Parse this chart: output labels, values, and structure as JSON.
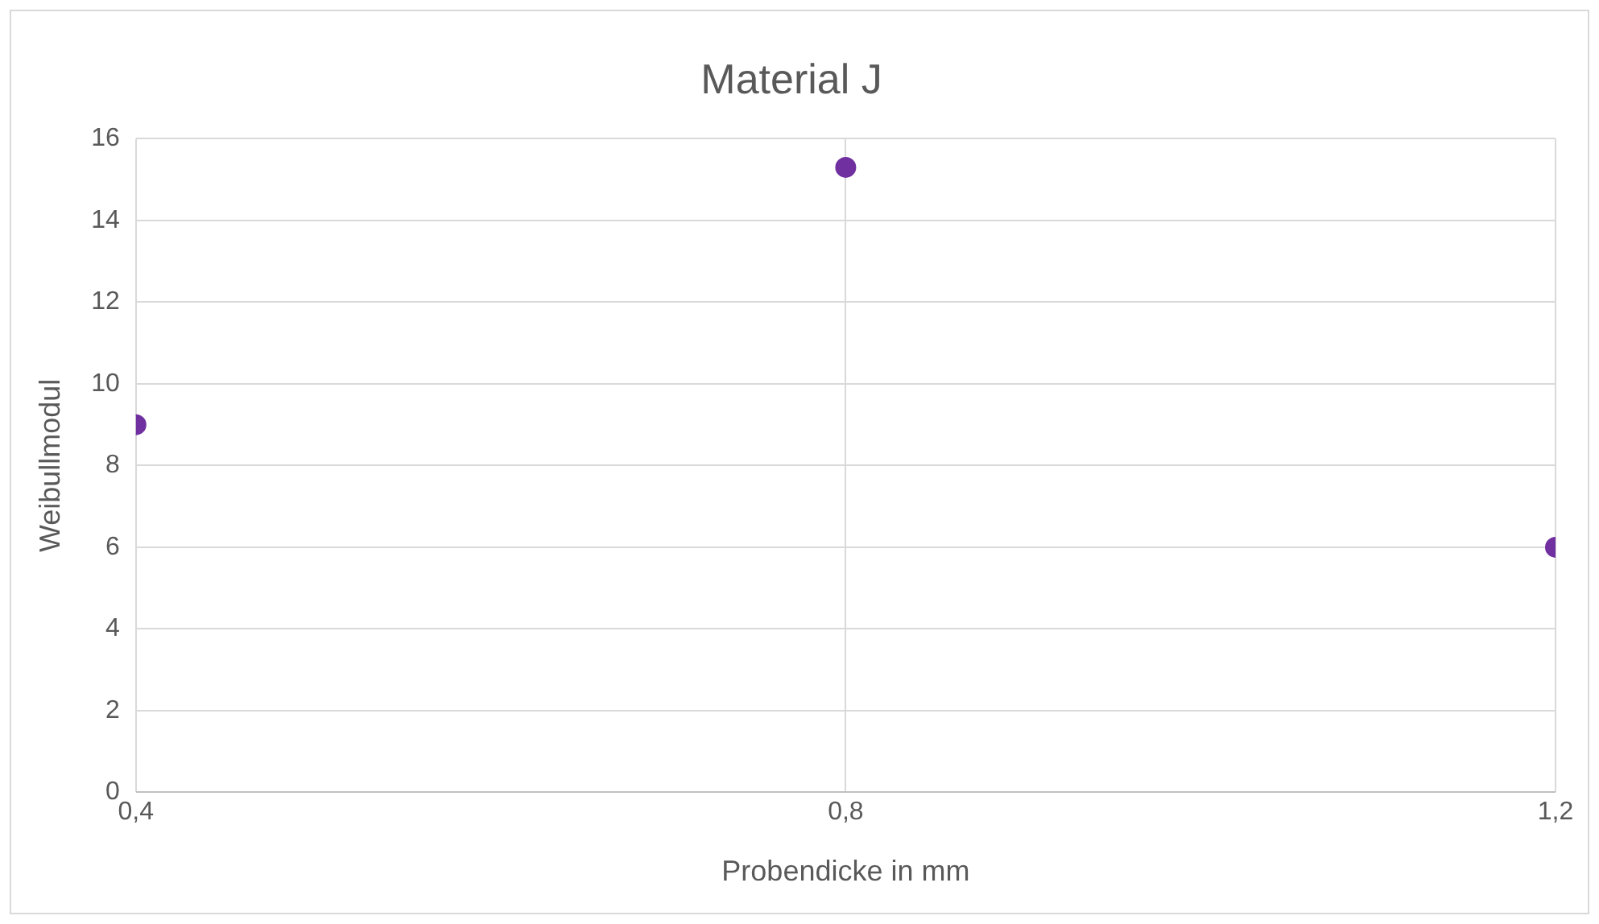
{
  "chart_data": {
    "type": "scatter",
    "title": "Material J",
    "xlabel": "Probendicke in mm",
    "ylabel": "Weibullmodul",
    "x": [
      0.4,
      0.8,
      1.2
    ],
    "series": [
      {
        "color": "#7030a0",
        "values": [
          9,
          15.3,
          6
        ]
      }
    ],
    "xlim": [
      0.4,
      1.2
    ],
    "xticks": [
      {
        "value": 0.4,
        "label": "0,4"
      },
      {
        "value": 0.8,
        "label": "0,8"
      },
      {
        "value": 1.2,
        "label": "1,2"
      }
    ],
    "ylim": [
      0,
      16
    ],
    "yticks": [
      0,
      2,
      4,
      6,
      8,
      10,
      12,
      14,
      16
    ],
    "grid": true,
    "legend": false,
    "marker": "circle"
  }
}
